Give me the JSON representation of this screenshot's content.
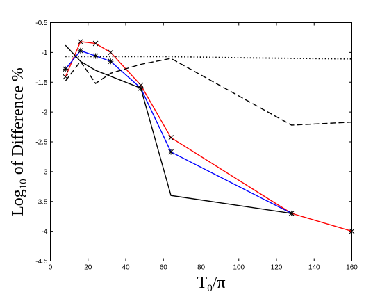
{
  "chart_data": {
    "type": "line",
    "title": "",
    "xlabel": {
      "prefix": "T",
      "sub": "0",
      "suffix": "/π"
    },
    "ylabel": {
      "prefix": "Log",
      "sub": "10",
      "suffix": " of Difference %"
    },
    "xlim": [
      0,
      160
    ],
    "ylim": [
      -4.5,
      -0.5
    ],
    "xticks": [
      0,
      20,
      40,
      60,
      80,
      100,
      120,
      140,
      160
    ],
    "yticks": [
      -0.5,
      -1,
      -1.5,
      -2,
      -2.5,
      -3,
      -3.5,
      -4,
      -4.5
    ],
    "grid": false,
    "legend": "none",
    "series": [
      {
        "color": "#ff0000",
        "dash": "solid",
        "marker": "x",
        "x": [
          8,
          16,
          24,
          32,
          48,
          64,
          128,
          160
        ],
        "y": [
          -1.41,
          -0.82,
          -0.85,
          -1.0,
          -1.55,
          -2.43,
          -3.7,
          -4.0
        ]
      },
      {
        "color": "#0000ff",
        "dash": "solid",
        "marker": "star",
        "x": [
          8,
          16,
          24,
          32,
          48,
          64,
          128
        ],
        "y": [
          -1.28,
          -0.97,
          -1.06,
          -1.15,
          -1.6,
          -2.67,
          -3.7
        ]
      },
      {
        "color": "#000000",
        "dash": "solid",
        "marker": "none",
        "x": [
          8,
          16,
          24,
          48,
          64,
          128
        ],
        "y": [
          -0.88,
          -1.15,
          -1.3,
          -1.6,
          -3.4,
          -3.7
        ]
      },
      {
        "color": "#000000",
        "dash": "dashed",
        "marker": "none",
        "x": [
          8,
          16,
          24,
          32,
          48,
          64,
          128,
          160
        ],
        "y": [
          -1.48,
          -1.15,
          -1.52,
          -1.35,
          -1.2,
          -1.1,
          -2.22,
          -2.17
        ]
      },
      {
        "color": "#000000",
        "dash": "dotted",
        "marker": "none",
        "x": [
          8,
          40,
          64,
          100,
          160
        ],
        "y": [
          -1.07,
          -1.07,
          -1.07,
          -1.09,
          -1.11
        ]
      }
    ]
  }
}
